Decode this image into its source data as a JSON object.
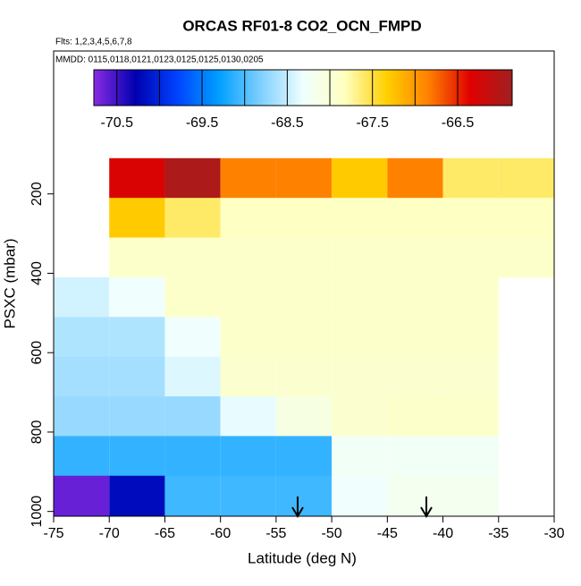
{
  "chart_data": {
    "type": "heatmap",
    "title": "ORCAS RF01-8 CO2_OCN_FMPD",
    "subtitle": "Flts: 1,2,3,4,5,6,7,8",
    "annotation": "MMDD: 0115,0118,0121,0123,0125,0125,0130,0205",
    "x_label": "Latitude (deg N)",
    "y_label": "PSXC (mbar)",
    "xlim": [
      -75,
      -30
    ],
    "xticks": [
      -75,
      -70,
      -65,
      -60,
      -55,
      -50,
      -45,
      -40,
      -35,
      -30
    ],
    "ylim": [
      1012,
      -160
    ],
    "yticks": [
      200,
      400,
      600,
      800,
      1000
    ],
    "x_edges": [
      -75,
      -70,
      -65,
      -60,
      -55,
      -50,
      -45,
      -40,
      -35,
      -30
    ],
    "y_edges": [
      110,
      210,
      310,
      410,
      510,
      610,
      710,
      810,
      910,
      1010
    ],
    "z": [
      [
        null,
        -66.3,
        -65.95,
        -66.85,
        -66.85,
        -67.3,
        -66.85,
        -67.6,
        -67.6
      ],
      [
        null,
        -67.3,
        -67.6,
        -67.85,
        -67.85,
        -67.85,
        -67.85,
        -67.85,
        -67.85
      ],
      [
        null,
        -67.9,
        -67.9,
        -67.9,
        -67.9,
        -67.9,
        -67.9,
        -67.9,
        -67.9
      ],
      [
        -68.45,
        -68.3,
        -67.9,
        -67.9,
        -67.9,
        -67.9,
        -67.9,
        -67.9,
        null
      ],
      [
        -68.6,
        -68.6,
        -68.3,
        -67.9,
        -67.9,
        -67.9,
        -67.9,
        -67.9,
        null
      ],
      [
        -68.65,
        -68.65,
        -68.4,
        -67.95,
        -67.95,
        -67.95,
        -67.95,
        -67.95,
        null
      ],
      [
        -68.7,
        -68.7,
        -68.7,
        -68.35,
        -68.1,
        -67.95,
        -67.9,
        -67.9,
        null
      ],
      [
        -69.1,
        -69.1,
        -69.1,
        -69.1,
        -69.1,
        -68.25,
        -68.25,
        -68.25,
        null
      ],
      [
        -70.65,
        -70.2,
        -69.05,
        -69.05,
        -69.05,
        -68.3,
        -68.2,
        -68.2,
        null
      ]
    ],
    "zlim": [
      -70.77,
      -65.86
    ],
    "zticks": [
      -70.5,
      -69.5,
      -68.5,
      -67.5,
      -66.5
    ],
    "colors": [
      "#8a2be2",
      "#0000b0",
      "#0044ff",
      "#00a0ff",
      "#80d0ff",
      "#f0ffff",
      "#ffffc0",
      "#ffd000",
      "#ff8000",
      "#e00000",
      "#a02020"
    ]
  }
}
